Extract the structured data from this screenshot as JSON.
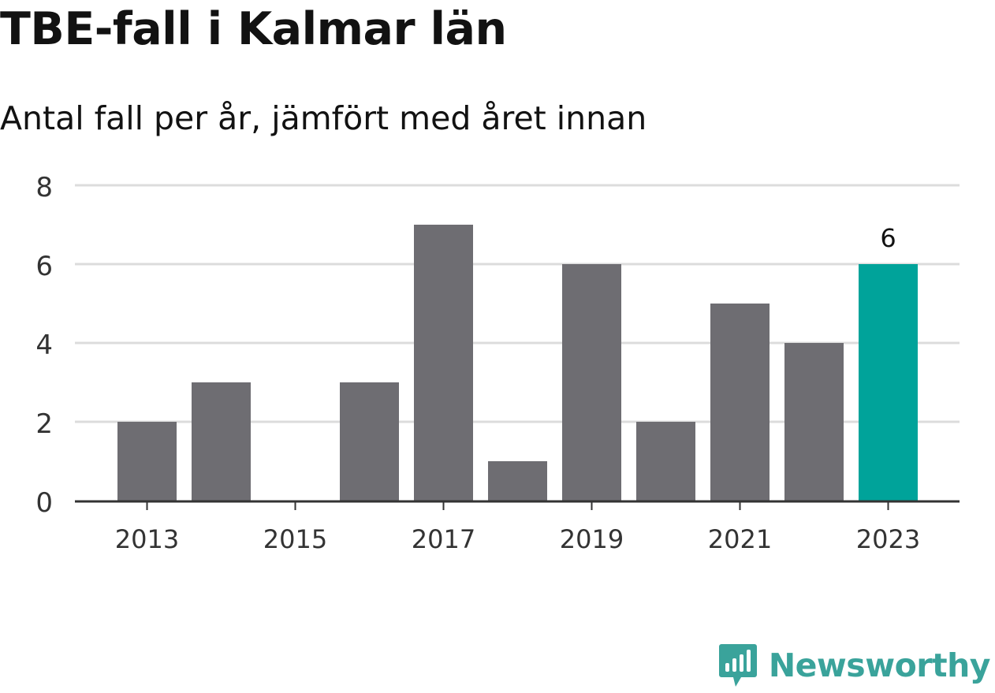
{
  "header": {
    "title": "TBE-fall i Kalmar län",
    "subtitle": "Antal fall per år, jämfört med året innan"
  },
  "brand": {
    "name": "Newsworthy",
    "icon": "newsworthy-logo-icon",
    "color": "#3aa39b"
  },
  "colors": {
    "bar": "#6e6d72",
    "highlight": "#00a39a",
    "grid": "#dcdcdc",
    "axis": "#333333",
    "text": "#333333"
  },
  "chart_data": {
    "type": "bar",
    "title": "TBE-fall i Kalmar län",
    "subtitle": "Antal fall per år, jämfört med året innan",
    "categories": [
      "2013",
      "2014",
      "2015",
      "2016",
      "2017",
      "2018",
      "2019",
      "2020",
      "2021",
      "2022",
      "2023"
    ],
    "values": [
      2,
      3,
      0,
      3,
      7,
      1,
      6,
      2,
      5,
      4,
      6
    ],
    "highlight_category": "2023",
    "data_labels": [
      {
        "category": "2023",
        "label": "6"
      }
    ],
    "x_tick_labels": [
      "2013",
      "2015",
      "2017",
      "2019",
      "2021",
      "2023"
    ],
    "y_ticks": [
      0,
      2,
      4,
      6,
      8
    ],
    "ylim": [
      0,
      8
    ],
    "xlabel": "",
    "ylabel": "",
    "grid": true,
    "legend": false
  }
}
